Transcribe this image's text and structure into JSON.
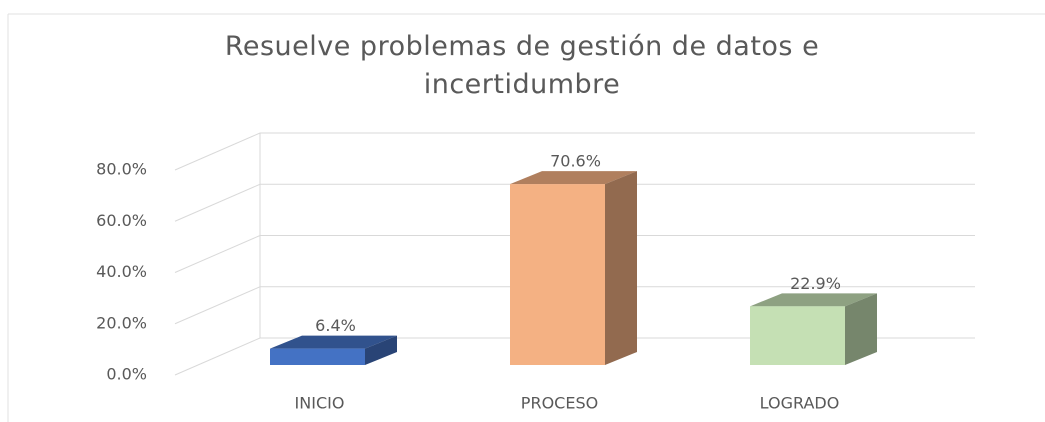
{
  "chart_data": {
    "type": "bar3d",
    "title": "Resuelve problemas de gestión de datos e incertidumbre",
    "categories": [
      "INICIO",
      "PROCESO",
      "LOGRADO"
    ],
    "values": [
      6.4,
      70.6,
      22.9
    ],
    "value_labels": [
      "6.4%",
      "70.6%",
      "22.9%"
    ],
    "colors": [
      "#4472c4",
      "#f4b183",
      "#c5e0b4"
    ],
    "ylim": [
      0,
      80
    ],
    "yticks": [
      {
        "value": 0,
        "label": "0.0%"
      },
      {
        "value": 20,
        "label": "20.0%"
      },
      {
        "value": 40,
        "label": "40.0%"
      },
      {
        "value": 60,
        "label": "60.0%"
      },
      {
        "value": 80,
        "label": "80.0%"
      }
    ],
    "grid": true
  }
}
